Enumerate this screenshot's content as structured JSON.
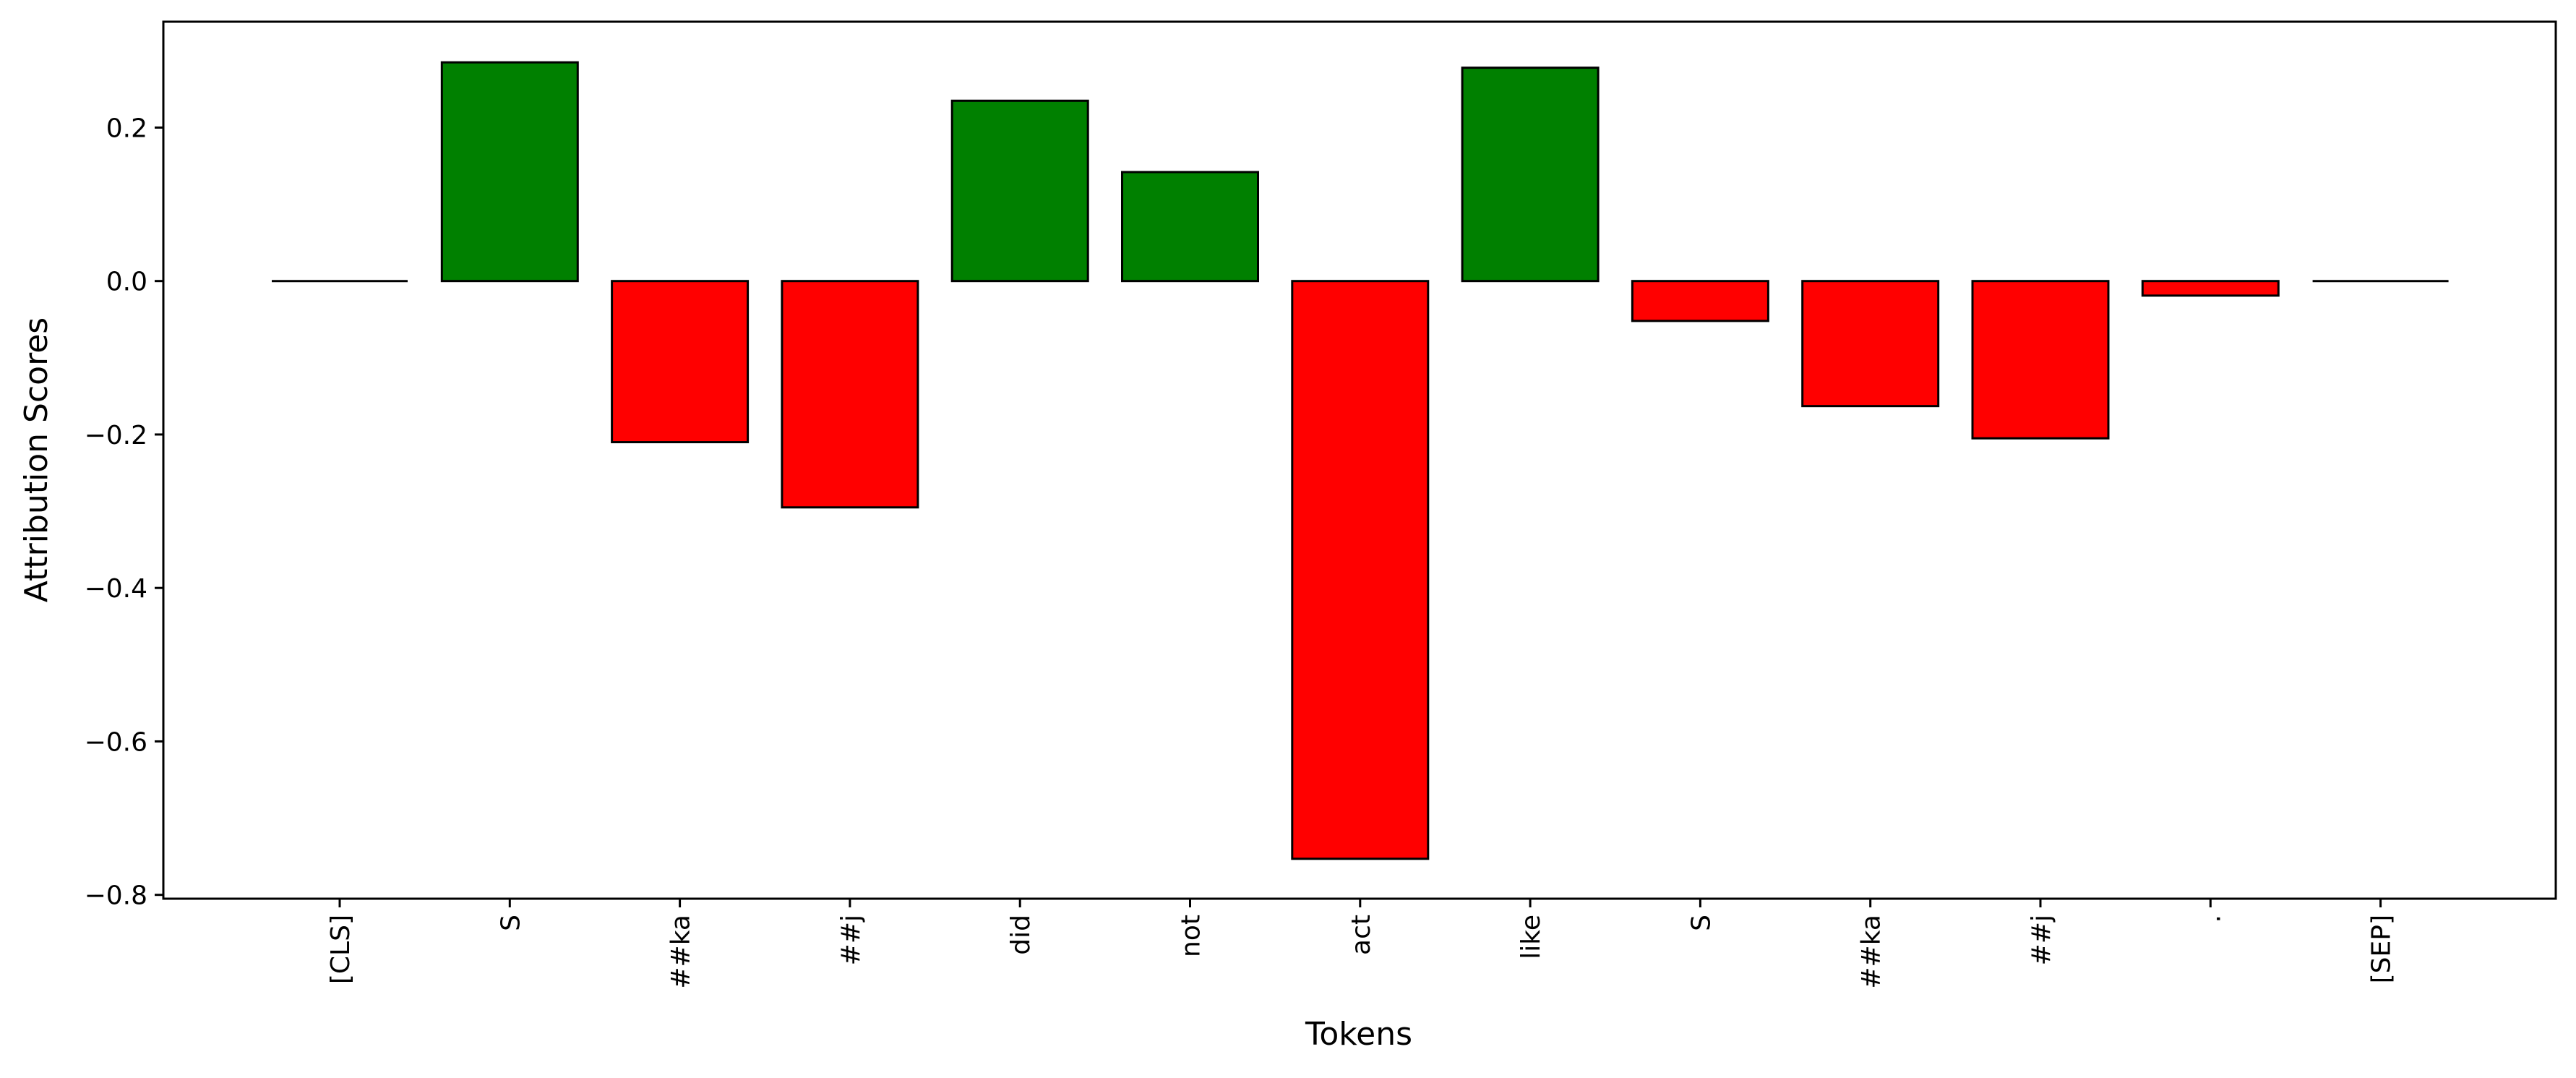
{
  "chart_data": {
    "type": "bar",
    "title": "",
    "xlabel": "Tokens",
    "ylabel": "Attribution Scores",
    "categories": [
      "[CLS]",
      "S",
      "##ka",
      "##j",
      "did",
      "not",
      "act",
      "like",
      "S",
      "##ka",
      "##j",
      ".",
      "[SEP]"
    ],
    "values": [
      0.0,
      0.285,
      -0.21,
      -0.295,
      0.235,
      0.142,
      -0.753,
      0.278,
      -0.052,
      -0.163,
      -0.205,
      -0.019,
      0.0
    ],
    "ylim": [
      -0.805,
      0.338
    ],
    "yticks": [
      0.2,
      0.0,
      -0.2,
      -0.4,
      -0.6,
      -0.8
    ],
    "ytick_labels": [
      "0.2",
      "0.0",
      "−0.2",
      "−0.4",
      "−0.6",
      "−0.8"
    ],
    "grid": false,
    "legend": "none",
    "colors": {
      "positive": "#008000",
      "negative": "#ff0000",
      "edge": "#000000"
    }
  }
}
